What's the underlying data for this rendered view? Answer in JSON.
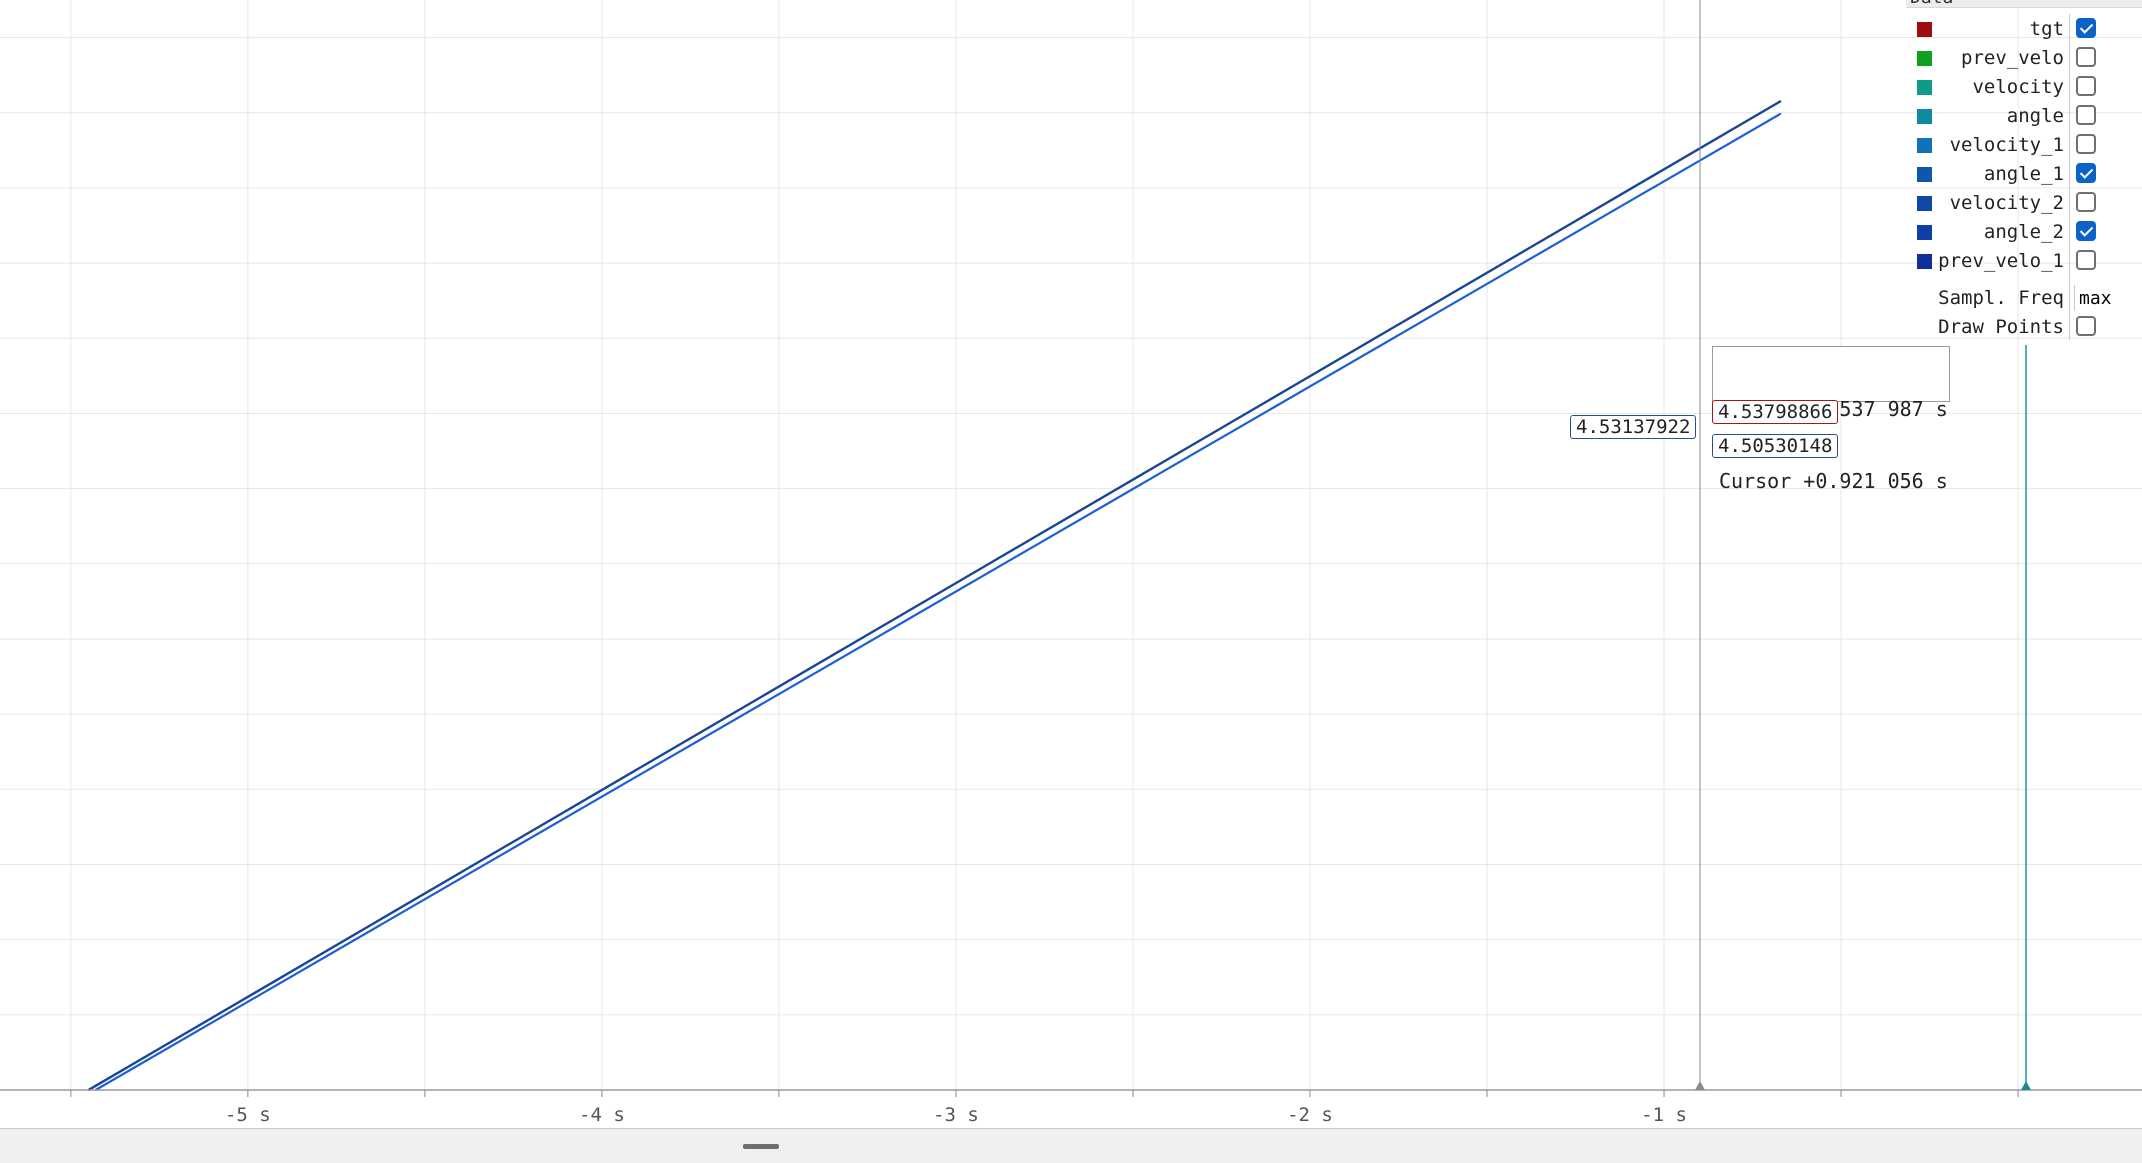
{
  "chart_data": {
    "type": "line",
    "x_unit": "s",
    "x_range": [
      -5.7,
      0.35
    ],
    "y_range": [
      2.55,
      4.805
    ],
    "x_ticks": [
      {
        "value": -5,
        "label": "-5 s"
      },
      {
        "value": -4,
        "label": "-4 s"
      },
      {
        "value": -3,
        "label": "-3 s"
      },
      {
        "value": -2,
        "label": "-2 s"
      },
      {
        "value": -1,
        "label": "-1 s"
      }
    ],
    "grid": true,
    "series": [
      {
        "name": "tgt",
        "color": "#990000",
        "x": [
          -5.45,
          -0.67
        ],
        "y": [
          2.55,
          4.596
        ]
      },
      {
        "name": "angle_1",
        "color": "#11499e",
        "x": [
          -5.45,
          -0.67
        ],
        "y": [
          2.55,
          4.596
        ]
      },
      {
        "name": "angle_2",
        "color": "#1a5fd6",
        "x": [
          -5.43,
          -0.67
        ],
        "y": [
          2.55,
          4.57
        ]
      }
    ]
  },
  "legend": {
    "header": "Data",
    "items": [
      {
        "name": "tgt",
        "color": "#9e0e0e",
        "checked": true
      },
      {
        "name": "prev_velo",
        "color": "#10a020",
        "checked": false
      },
      {
        "name": "velocity",
        "color": "#0f9a8a",
        "checked": false
      },
      {
        "name": "angle",
        "color": "#0f8aa0",
        "checked": false
      },
      {
        "name": "velocity_1",
        "color": "#1072b8",
        "checked": false
      },
      {
        "name": "angle_1",
        "color": "#0f56ad",
        "checked": true
      },
      {
        "name": "velocity_2",
        "color": "#1147a8",
        "checked": false
      },
      {
        "name": "angle_2",
        "color": "#0f3ea8",
        "checked": true
      },
      {
        "name": "prev_velo_1",
        "color": "#0e2f9c",
        "checked": false
      }
    ],
    "sampl_freq_label": "Sampl. Freq",
    "sampl_freq_value": "max",
    "draw_points_label": "Draw Points",
    "draw_points_checked": false
  },
  "tooltip": {
    "time_text": "Time   +4.537 987 s",
    "cursor_text": "Cursor +0.921 056 s"
  },
  "value_labels": {
    "left": "4.53137922",
    "tgt": "4.53798866",
    "angle_2": "4.50530148"
  }
}
